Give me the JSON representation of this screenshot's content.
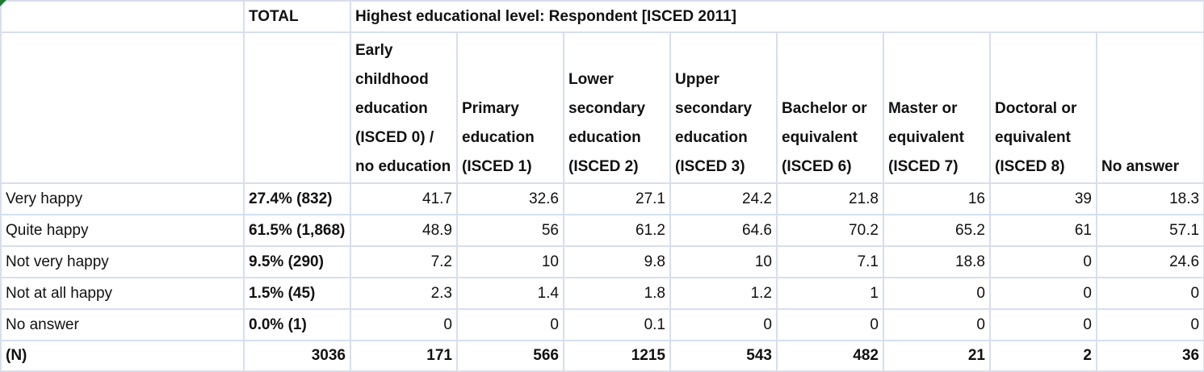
{
  "title_row": {
    "total_label": "TOTAL",
    "group_label": "Highest educational level: Respondent [ISCED 2011]"
  },
  "columns": [
    "Early childhood education (ISCED 0) / no education",
    "Primary education (ISCED 1)",
    "Lower secondary education (ISCED 2)",
    "Upper secondary education (ISCED 3)",
    "Bachelor or equivalent (ISCED 6)",
    "Master or equivalent (ISCED 7)",
    "Doctoral or equivalent (ISCED 8)",
    "No answer"
  ],
  "rows": [
    {
      "label": "Very happy",
      "total": "27.4% (832)",
      "values": [
        "41.7",
        "32.6",
        "27.1",
        "24.2",
        "21.8",
        "16",
        "39",
        "18.3"
      ]
    },
    {
      "label": "Quite happy",
      "total": "61.5% (1,868)",
      "values": [
        "48.9",
        "56",
        "61.2",
        "64.6",
        "70.2",
        "65.2",
        "61",
        "57.1"
      ]
    },
    {
      "label": "Not very happy",
      "total": "9.5% (290)",
      "values": [
        "7.2",
        "10",
        "9.8",
        "10",
        "7.1",
        "18.8",
        "0",
        "24.6"
      ]
    },
    {
      "label": "Not at all happy",
      "total": "1.5% (45)",
      "values": [
        "2.3",
        "1.4",
        "1.8",
        "1.2",
        "1",
        "0",
        "0",
        "0"
      ]
    },
    {
      "label": "No answer",
      "total": "0.0% (1)",
      "values": [
        "0",
        "0",
        "0.1",
        "0",
        "0",
        "0",
        "0",
        "0"
      ]
    }
  ],
  "n_row": {
    "label": "(N)",
    "total": "3036",
    "values": [
      "171",
      "566",
      "1215",
      "543",
      "482",
      "21",
      "2",
      "36"
    ]
  },
  "colors": {
    "grid_border": "#d7dfec",
    "corner_marker": "#1e7a32"
  }
}
